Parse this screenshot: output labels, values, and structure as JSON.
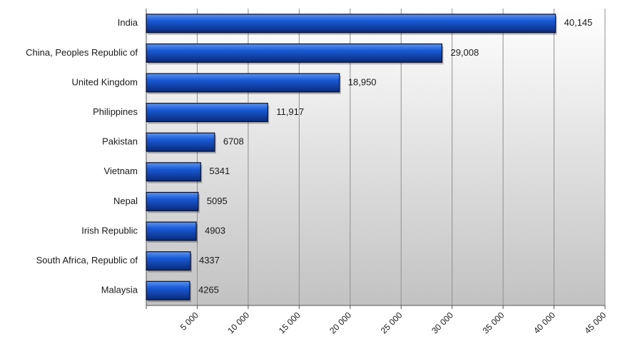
{
  "chart_data": {
    "type": "bar",
    "orientation": "horizontal",
    "categories": [
      "India",
      "China, Peoples Republic of",
      "United Kingdom",
      "Philippines",
      "Pakistan",
      "Vietnam",
      "Nepal",
      "Irish Republic",
      "South Africa, Republic of",
      "Malaysia"
    ],
    "values": [
      40145,
      29008,
      18950,
      11917,
      6708,
      5341,
      5095,
      4903,
      4337,
      4265
    ],
    "value_labels": [
      "40,145",
      "29,008",
      "18,950",
      "11,917",
      "6708",
      "5341",
      "5095",
      "4903",
      "4337",
      "4265"
    ],
    "x_ticks": [
      0,
      5000,
      10000,
      15000,
      20000,
      25000,
      30000,
      35000,
      40000,
      45000
    ],
    "x_tick_labels": [
      "5 000",
      "10 000",
      "15 000",
      "20 000",
      "25 000",
      "30 000",
      "35 000",
      "40 000",
      "45 000"
    ],
    "xlim": [
      0,
      45000
    ],
    "grid": "vertical",
    "legend": "none",
    "title": "",
    "xlabel": "",
    "ylabel": "",
    "colors": {
      "bar_dark": "#0a2a78",
      "bar_mid": "#1a5ad6",
      "bar_light": "#5c95f2",
      "bar_border": "#0a0f2a",
      "plot_bg_top": "#ffffff",
      "plot_bg_bottom": "#c2c2c2",
      "grid": "#8f8f8f",
      "text": "#1a1a1a"
    }
  }
}
